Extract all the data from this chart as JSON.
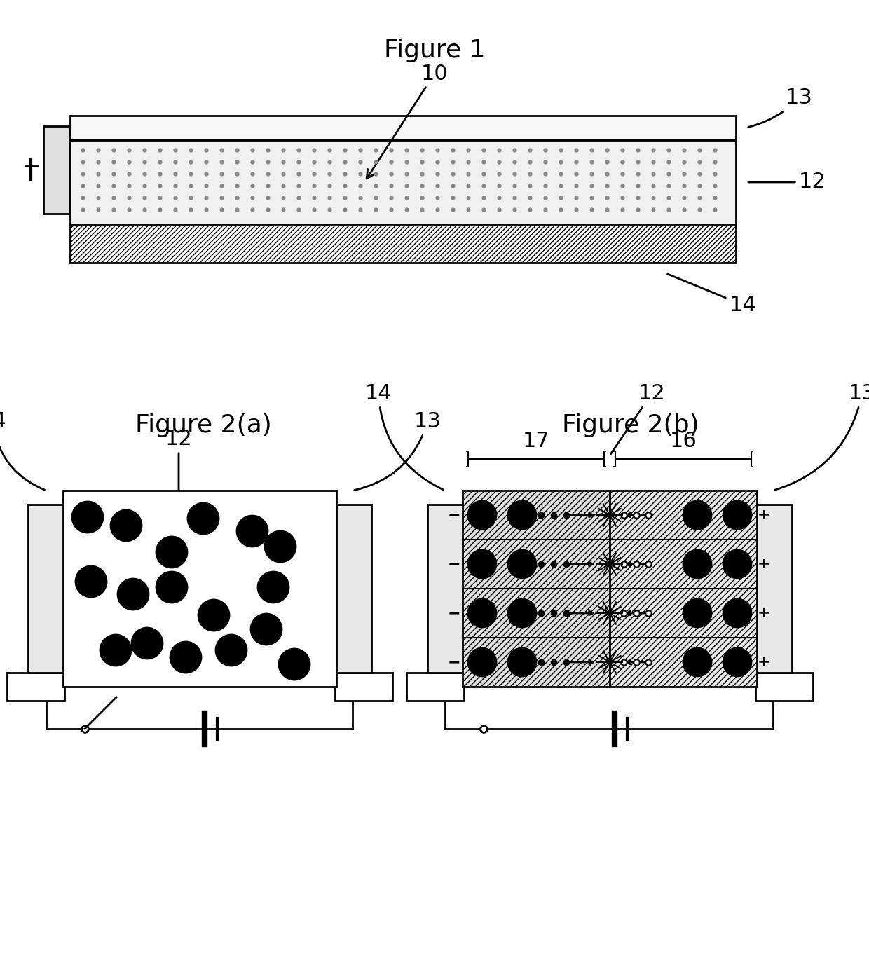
{
  "bg_color": "#ffffff",
  "fig1_title": "Figure 1",
  "fig2a_title": "Figure 2(a)",
  "fig2b_title": "Figure 2(b)",
  "label_10": "10",
  "label_12": "12",
  "label_13": "13",
  "label_14": "14",
  "label_16": "16",
  "label_17": "17",
  "dot_color": "#888888",
  "hatch_color": "#000000",
  "electrode_color": "#dddddd",
  "line_color": "#000000"
}
